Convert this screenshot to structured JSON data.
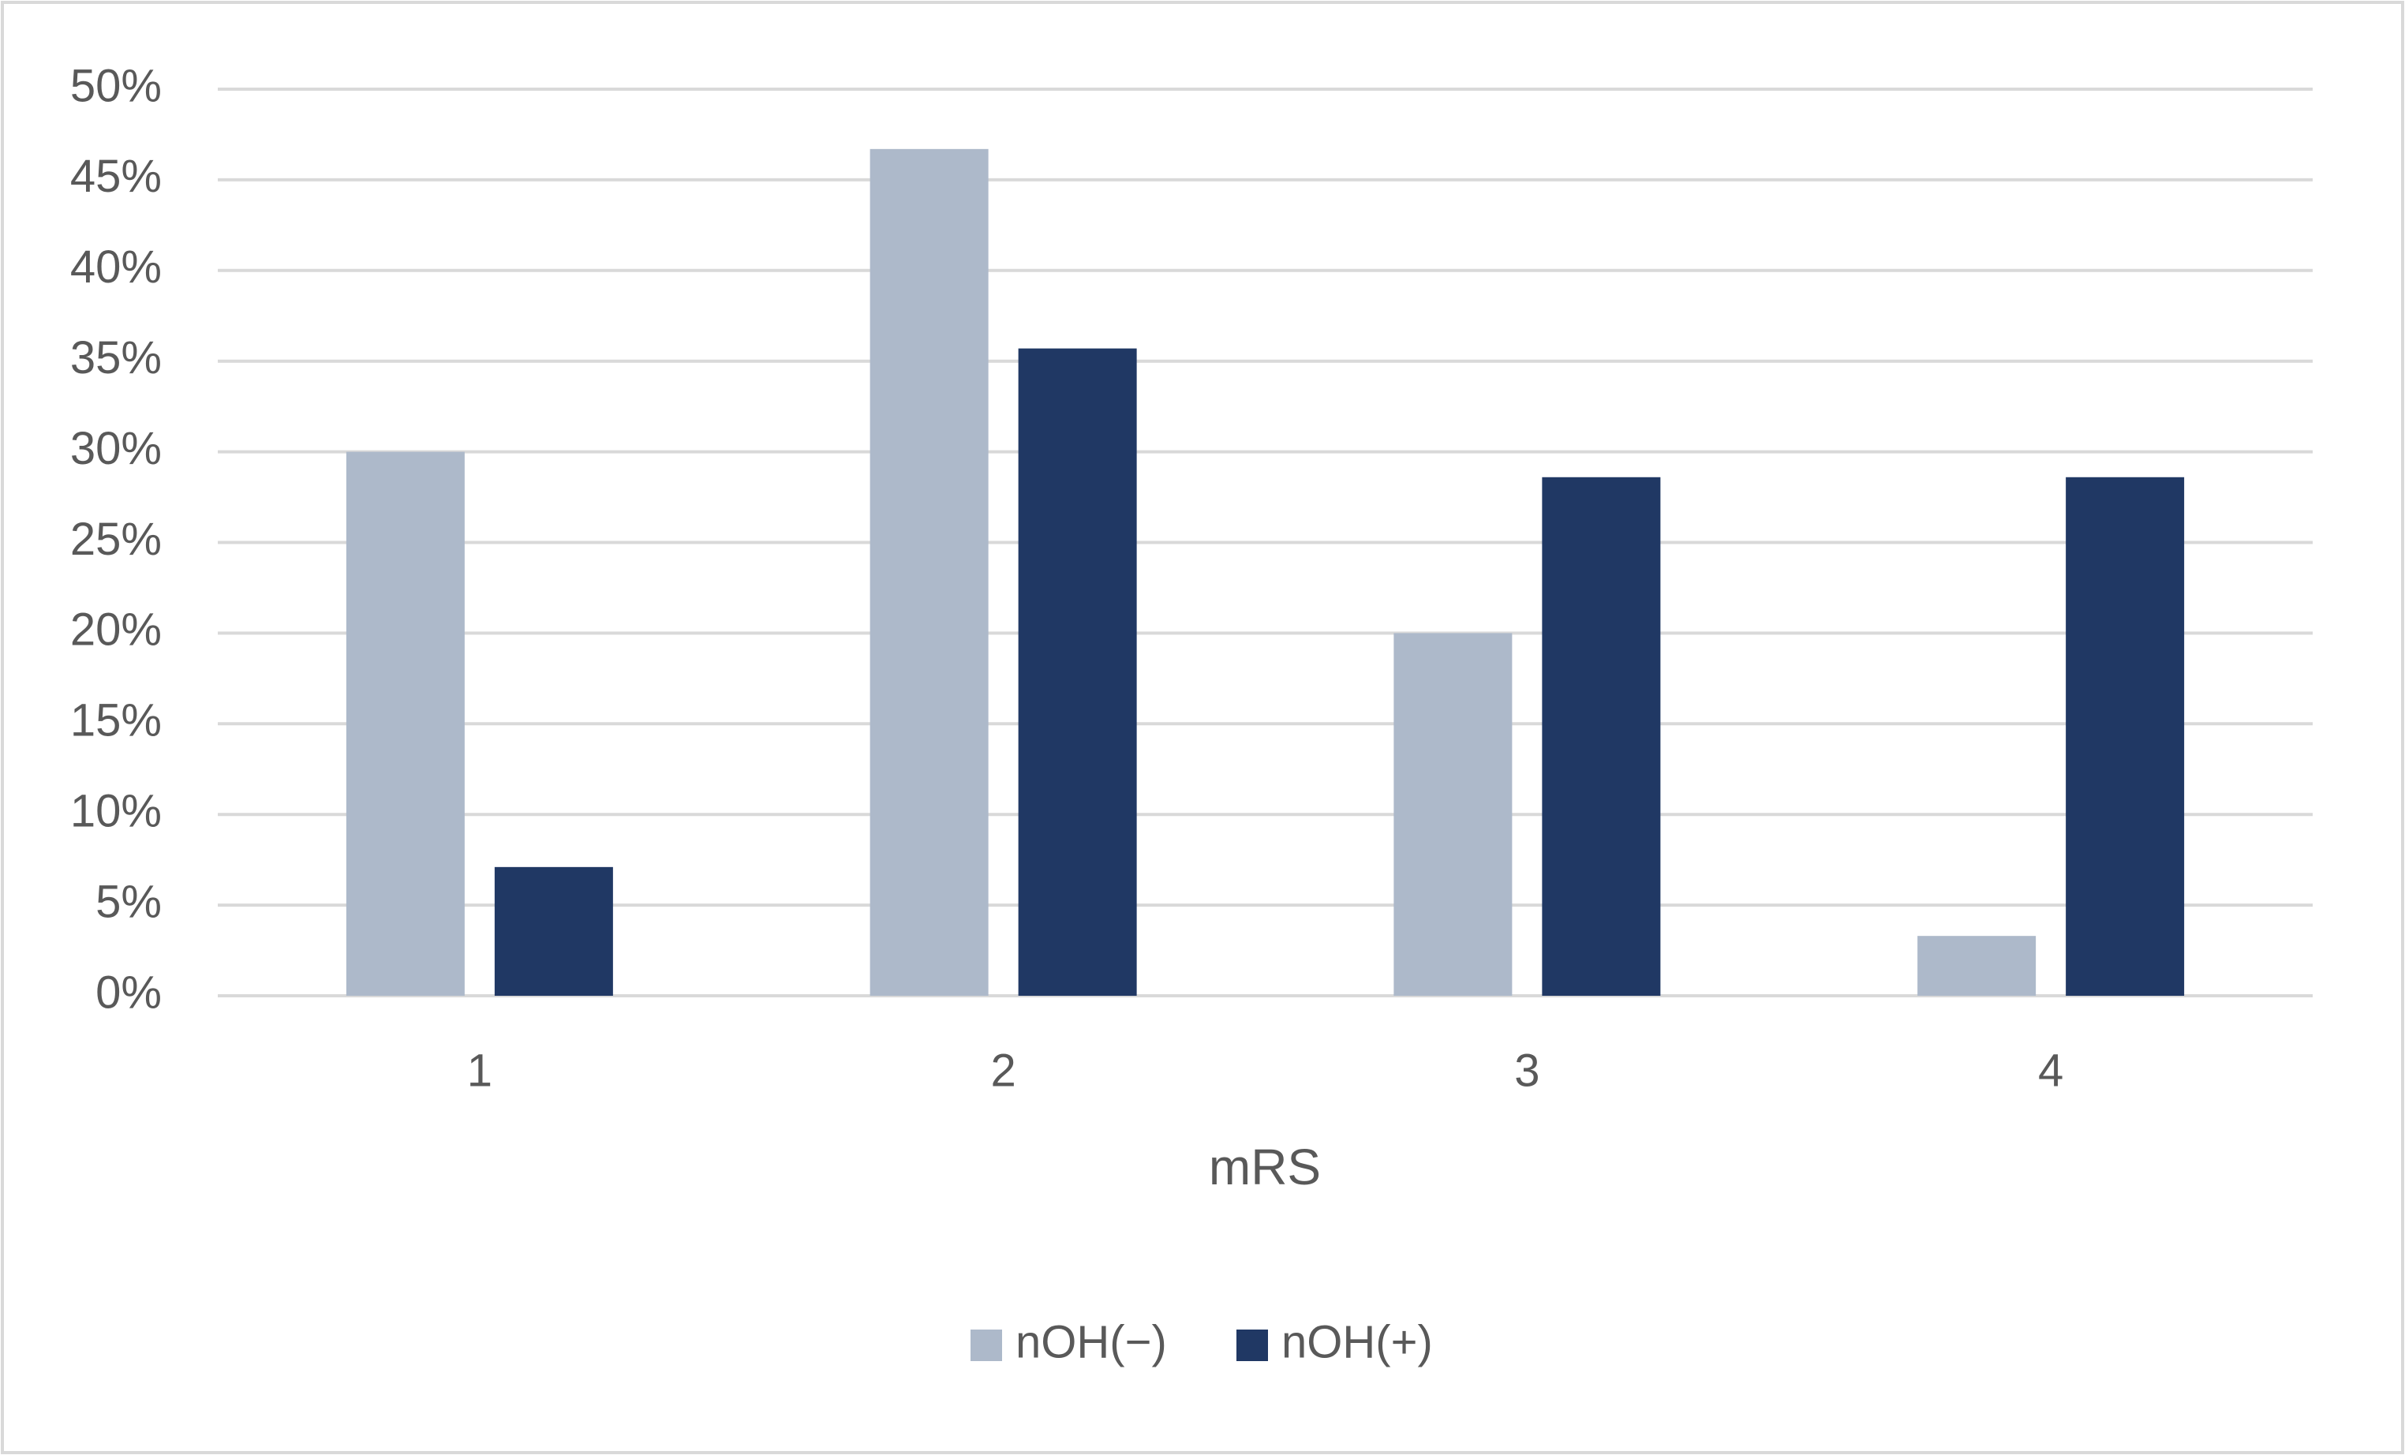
{
  "chart_data": {
    "type": "bar",
    "x_label": "mRS",
    "categories": [
      "1",
      "2",
      "3",
      "4"
    ],
    "series": [
      {
        "name": "nOH(−)",
        "color": "#adb9ca",
        "values": [
          30,
          46.7,
          20,
          3.3
        ]
      },
      {
        "name": "nOH(+)",
        "color": "#203864",
        "values": [
          7.1,
          35.7,
          28.6,
          28.6
        ]
      }
    ],
    "ylim": [
      0,
      50
    ],
    "yticks": [
      {
        "value": 0,
        "label": "0%"
      },
      {
        "value": 5,
        "label": "5%"
      },
      {
        "value": 10,
        "label": "10%"
      },
      {
        "value": 15,
        "label": "15%"
      },
      {
        "value": 20,
        "label": "20%"
      },
      {
        "value": 25,
        "label": "25%"
      },
      {
        "value": 30,
        "label": "30%"
      },
      {
        "value": 35,
        "label": "35%"
      },
      {
        "value": 40,
        "label": "40%"
      },
      {
        "value": 45,
        "label": "45%"
      },
      {
        "value": 50,
        "label": "50%"
      }
    ],
    "grid": true,
    "legend": "bottom"
  }
}
